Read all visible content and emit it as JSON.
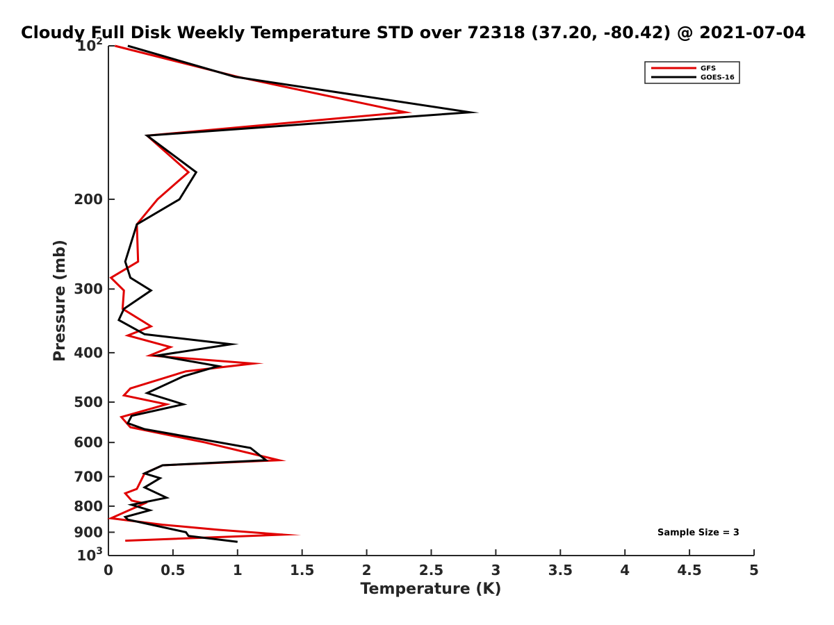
{
  "chart_data": {
    "type": "line",
    "title": "Cloudy Full Disk Weekly Temperature STD over 72318 (37.20, -80.42) @ 2021-07-04",
    "xlabel": "Temperature (K)",
    "ylabel": "Pressure (mb)",
    "xlim": [
      0,
      5
    ],
    "ylim": [
      100,
      1000
    ],
    "yscale": "log",
    "y_reversed": true,
    "x_ticks": [
      {
        "value": 0,
        "label": "0"
      },
      {
        "value": 0.5,
        "label": "0.5"
      },
      {
        "value": 1,
        "label": "1"
      },
      {
        "value": 1.5,
        "label": "1.5"
      },
      {
        "value": 2,
        "label": "2"
      },
      {
        "value": 2.5,
        "label": "2.5"
      },
      {
        "value": 3,
        "label": "3"
      },
      {
        "value": 3.5,
        "label": "3.5"
      },
      {
        "value": 4,
        "label": "4"
      },
      {
        "value": 4.5,
        "label": "4.5"
      },
      {
        "value": 5,
        "label": "5"
      }
    ],
    "y_ticks": [
      {
        "value": 100,
        "base": "10",
        "exp": "2"
      },
      {
        "value": 200,
        "base": "200",
        "exp": ""
      },
      {
        "value": 300,
        "base": "300",
        "exp": ""
      },
      {
        "value": 400,
        "base": "400",
        "exp": ""
      },
      {
        "value": 500,
        "base": "500",
        "exp": ""
      },
      {
        "value": 600,
        "base": "600",
        "exp": ""
      },
      {
        "value": 700,
        "base": "700",
        "exp": ""
      },
      {
        "value": 800,
        "base": "800",
        "exp": ""
      },
      {
        "value": 900,
        "base": "900",
        "exp": ""
      },
      {
        "value": 1000,
        "base": "10",
        "exp": "3"
      }
    ],
    "legend_position": "top-right",
    "annotation": "Sample Size = 3",
    "series": [
      {
        "name": "GFS",
        "color": "#e00000",
        "points": [
          [
            0.05,
            100
          ],
          [
            1.0,
            115
          ],
          [
            2.3,
            135
          ],
          [
            0.3,
            150
          ],
          [
            0.62,
            177
          ],
          [
            0.38,
            200
          ],
          [
            0.22,
            224
          ],
          [
            0.23,
            265
          ],
          [
            0.02,
            285
          ],
          [
            0.12,
            302
          ],
          [
            0.11,
            328
          ],
          [
            0.33,
            355
          ],
          [
            0.15,
            370
          ],
          [
            0.48,
            390
          ],
          [
            0.32,
            405
          ],
          [
            1.12,
            420
          ],
          [
            0.6,
            435
          ],
          [
            0.17,
            470
          ],
          [
            0.12,
            485
          ],
          [
            0.45,
            505
          ],
          [
            0.1,
            535
          ],
          [
            0.17,
            560
          ],
          [
            0.75,
            600
          ],
          [
            1.32,
            650
          ],
          [
            0.42,
            665
          ],
          [
            0.28,
            690
          ],
          [
            0.22,
            740
          ],
          [
            0.13,
            755
          ],
          [
            0.18,
            780
          ],
          [
            0.28,
            790
          ],
          [
            0.02,
            845
          ],
          [
            0.42,
            870
          ],
          [
            0.85,
            890
          ],
          [
            1.35,
            910
          ],
          [
            0.13,
            935
          ]
        ]
      },
      {
        "name": "GOES-16",
        "color": "#000000",
        "points": [
          [
            0.15,
            100
          ],
          [
            0.98,
            115
          ],
          [
            2.8,
            135
          ],
          [
            0.3,
            150
          ],
          [
            0.68,
            177
          ],
          [
            0.55,
            200
          ],
          [
            0.22,
            224
          ],
          [
            0.13,
            265
          ],
          [
            0.17,
            285
          ],
          [
            0.33,
            302
          ],
          [
            0.12,
            328
          ],
          [
            0.08,
            345
          ],
          [
            0.28,
            368
          ],
          [
            0.95,
            385
          ],
          [
            0.38,
            405
          ],
          [
            0.85,
            425
          ],
          [
            0.58,
            445
          ],
          [
            0.3,
            480
          ],
          [
            0.58,
            505
          ],
          [
            0.18,
            532
          ],
          [
            0.15,
            550
          ],
          [
            0.28,
            565
          ],
          [
            1.1,
            615
          ],
          [
            1.22,
            650
          ],
          [
            0.42,
            665
          ],
          [
            0.28,
            690
          ],
          [
            0.4,
            705
          ],
          [
            0.28,
            735
          ],
          [
            0.45,
            770
          ],
          [
            0.18,
            795
          ],
          [
            0.32,
            815
          ],
          [
            0.13,
            840
          ],
          [
            0.15,
            850
          ],
          [
            0.6,
            900
          ],
          [
            0.62,
            915
          ],
          [
            1.0,
            940
          ]
        ]
      }
    ]
  }
}
